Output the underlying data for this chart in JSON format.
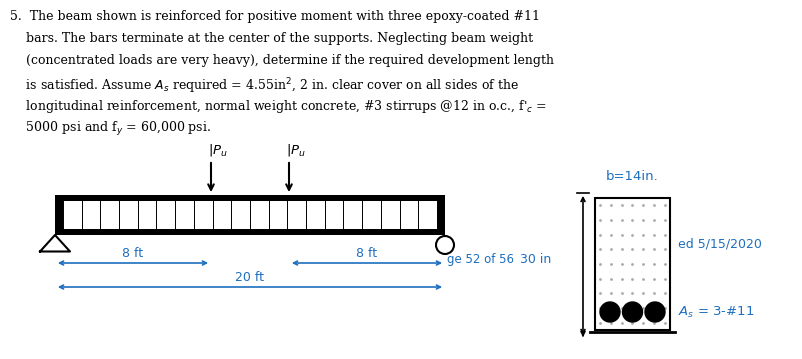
{
  "text_color": "#000000",
  "dim_color": "#1E6FBF",
  "background_color": "#ffffff",
  "dim_8ft_left_label": "8 ft",
  "dim_8ft_right_label": "8 ft",
  "dim_20ft_label": "20 ft",
  "dim_30in_label": "30 in",
  "page_label": "ge 52 of 56",
  "cross_label_b": "b=14in.",
  "cross_label_date": "ed 5/15/2020",
  "cross_label_as": "A$_s$ = 3-#11"
}
